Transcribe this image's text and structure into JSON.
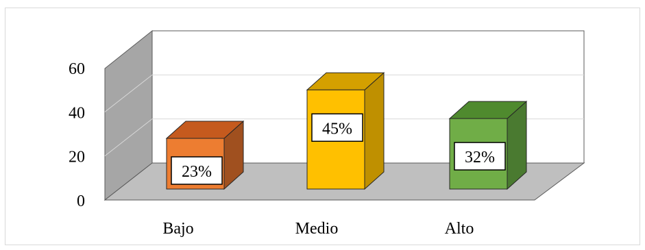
{
  "chart_data": {
    "type": "bar",
    "style": "3d-column",
    "categories": [
      "Bajo",
      "Medio",
      "Alto"
    ],
    "values": [
      23,
      45,
      32
    ],
    "data_labels": [
      "23%",
      "45%",
      "32%"
    ],
    "ylim": [
      0,
      60
    ],
    "y_ticks": [
      "0",
      "20",
      "40",
      "60"
    ],
    "title": "",
    "xlabel": "",
    "ylabel": "",
    "grid": true,
    "legend": "none",
    "colors": {
      "bars": [
        {
          "front": "#ED7D31",
          "top": "#C55A1E",
          "side": "#A0501F"
        },
        {
          "front": "#FFC000",
          "top": "#D4A000",
          "side": "#BF9000"
        },
        {
          "front": "#70AD47",
          "top": "#4F8A2E",
          "side": "#4A7A30"
        }
      ],
      "floor": "#BFBFBF",
      "side_wall": "#A6A6A6",
      "back_wall": "#FFFFFF",
      "gridline": "#D9D9D9",
      "wall_edge": "#595959",
      "label_box": "#FFFFFF",
      "label_border": "#000000"
    }
  }
}
